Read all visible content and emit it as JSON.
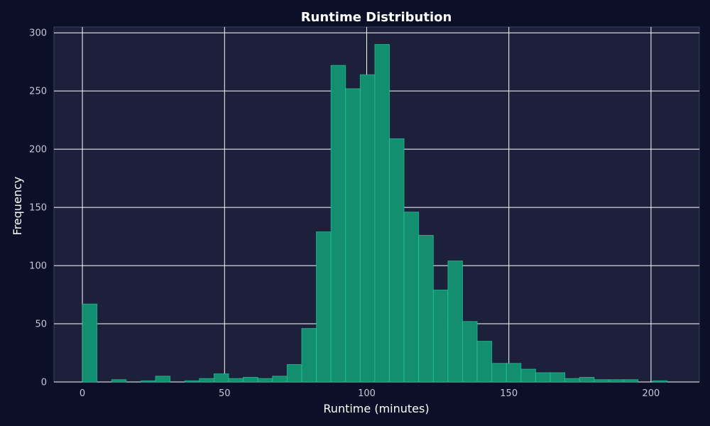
{
  "chart_data": {
    "type": "bar",
    "title": "Runtime Distribution",
    "xlabel": "Runtime (minutes)",
    "ylabel": "Frequency",
    "xlim": [
      -10,
      217
    ],
    "ylim": [
      0,
      305
    ],
    "xticks": [
      0,
      50,
      100,
      150,
      200
    ],
    "yticks": [
      0,
      50,
      100,
      150,
      200,
      250,
      300
    ],
    "grid": true,
    "bin_edges": [
      0,
      5.14,
      10.29,
      15.43,
      20.57,
      25.71,
      30.86,
      36,
      41.14,
      46.29,
      51.43,
      56.57,
      61.71,
      66.86,
      72,
      77.14,
      82.29,
      87.43,
      92.57,
      97.71,
      102.86,
      108,
      113.14,
      118.29,
      123.43,
      128.57,
      133.71,
      138.86,
      144,
      149.14,
      154.29,
      159.43,
      164.57,
      169.71,
      174.86,
      180,
      185.14,
      190.29,
      195.43,
      200.57,
      205.71
    ],
    "values": [
      67,
      0,
      2,
      0,
      1,
      5,
      0,
      1,
      3,
      7,
      3,
      4,
      3,
      5,
      15,
      46,
      129,
      272,
      252,
      264,
      290,
      209,
      146,
      126,
      79,
      104,
      52,
      35,
      16,
      16,
      11,
      8,
      8,
      3,
      4,
      2,
      2,
      2,
      0,
      1
    ]
  },
  "colors": {
    "page_background": "#0b0f27",
    "plot_background": "#1c203b",
    "bar_fill": "#138f6f",
    "bar_edge": "#26c49a",
    "grid": "#ffffff",
    "text": "#ffffff",
    "tick_text": "#c4c7d6"
  }
}
